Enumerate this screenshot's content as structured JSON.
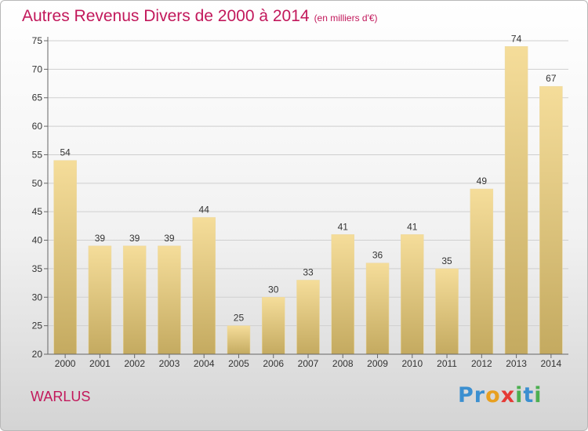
{
  "header": {
    "title": "Autres Revenus Divers de 2000 à 2014",
    "unit": "(en milliers d'€)"
  },
  "location": "WARLUS",
  "logo": {
    "text": "Proxiti",
    "colors": [
      "#3b8fd0",
      "#3b8fd0",
      "#e8a020",
      "#e53935",
      "#4caf50",
      "#3b8fd0",
      "#4caf50"
    ]
  },
  "colors": {
    "title": "#c2185b",
    "bar_light": "#f5dd9a",
    "bar_dark": "#c4aa60",
    "grid": "#cfcfcf",
    "axis": "#666666",
    "text": "#333333"
  },
  "chart_data": {
    "type": "bar",
    "categories": [
      "2000",
      "2001",
      "2002",
      "2003",
      "2004",
      "2005",
      "2006",
      "2007",
      "2008",
      "2009",
      "2010",
      "2011",
      "2012",
      "2013",
      "2014"
    ],
    "values": [
      54,
      39,
      39,
      39,
      44,
      25,
      30,
      33,
      41,
      36,
      41,
      35,
      49,
      74,
      67
    ],
    "ylim": [
      20,
      75
    ],
    "yticks": [
      20,
      25,
      30,
      35,
      40,
      45,
      50,
      55,
      60,
      65,
      70,
      75
    ],
    "grid": "horizontal",
    "title": "Autres Revenus Divers de 2000 à 2014",
    "xlabel": "",
    "ylabel": ""
  }
}
